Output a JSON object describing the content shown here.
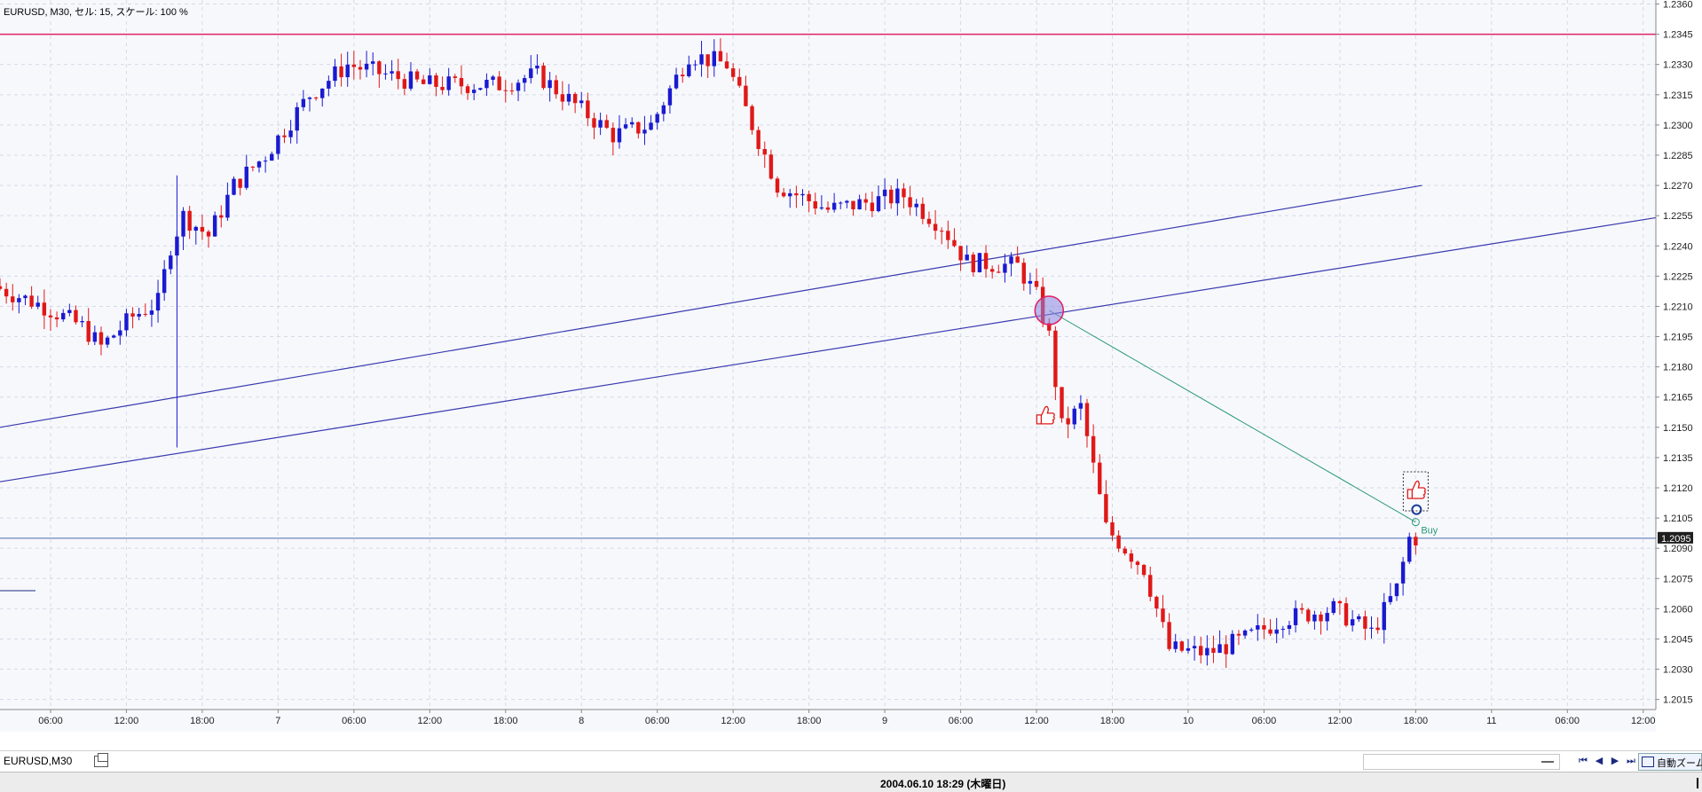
{
  "header": {
    "symbol_info": "EURUSD, M30, セル: 15, スケール: 100 %"
  },
  "price_axis": {
    "labels": [
      "1.2360",
      "1.2345",
      "1.2330",
      "1.2315",
      "1.2300",
      "1.2285",
      "1.2270",
      "1.2255",
      "1.2240",
      "1.2225",
      "1.2210",
      "1.2195",
      "1.2180",
      "1.2165",
      "1.2150",
      "1.2135",
      "1.2120",
      "1.2105",
      "1.2090",
      "1.2075",
      "1.2060",
      "1.2045",
      "1.2030",
      "1.2015"
    ],
    "current_price": "1.2095"
  },
  "time_axis": {
    "labels": [
      "06:00",
      "12:00",
      "18:00",
      "7",
      "06:00",
      "12:00",
      "18:00",
      "8",
      "06:00",
      "12:00",
      "18:00",
      "9",
      "06:00",
      "12:00",
      "18:00",
      "10",
      "06:00",
      "12:00",
      "18:00",
      "11",
      "06:00",
      "12:00"
    ]
  },
  "annotations": {
    "buy_label": "Buy"
  },
  "colors": {
    "bull": "#1a1ad0",
    "bear": "#e01818",
    "resistance": "#e0206a",
    "trendline": "#3a3aaf",
    "signal": "#2a9a7a"
  },
  "chart_data": {
    "type": "candlestick",
    "symbol": "EURUSD",
    "timeframe": "M30",
    "ylim": [
      1.201,
      1.2362
    ],
    "resistance_level": 1.2345,
    "current_price": 1.2095,
    "x_range": [
      "2004-06-06 02:00",
      "2004-06-11 13:00"
    ],
    "trendlines": [
      {
        "from": [
          "2004-06-06 02:00",
          1.215
        ],
        "to": [
          "2004-06-10 18:30",
          1.227
        ]
      },
      {
        "from": [
          "2004-06-06 02:00",
          1.2123
        ],
        "to": [
          "2004-06-11 14:00",
          1.2255
        ]
      }
    ],
    "signal_line": {
      "from": [
        "2004-06-09 13:00",
        1.2208
      ],
      "to": [
        "2004-06-10 18:00",
        1.2103
      ],
      "label": "Buy"
    },
    "anchor_points": [
      [
        "2004-06-06 02:00",
        1.222
      ],
      [
        "2004-06-06 06:00",
        1.221
      ],
      [
        "2004-06-06 09:00",
        1.22
      ],
      [
        "2004-06-06 10:30",
        1.219
      ],
      [
        "2004-06-06 13:00",
        1.2205
      ],
      [
        "2004-06-06 15:00",
        1.2212
      ],
      [
        "2004-06-06 16:00",
        1.224
      ],
      [
        "2004-06-06 17:00",
        1.2255
      ],
      [
        "2004-06-06 19:00",
        1.2245
      ],
      [
        "2004-06-06 21:00",
        1.227
      ],
      [
        "2004-06-06 23:30",
        1.2285
      ],
      [
        "2004-06-07 03:00",
        1.2315
      ],
      [
        "2004-06-07 06:00",
        1.233
      ],
      [
        "2004-06-07 12:00",
        1.232
      ],
      [
        "2004-06-07 18:00",
        1.232
      ],
      [
        "2004-06-07 21:00",
        1.2325
      ],
      [
        "2004-06-08 00:00",
        1.231
      ],
      [
        "2004-06-08 03:00",
        1.2295
      ],
      [
        "2004-06-08 06:00",
        1.23
      ],
      [
        "2004-06-08 09:00",
        1.2335
      ],
      [
        "2004-06-08 12:00",
        1.233
      ],
      [
        "2004-06-08 14:00",
        1.23
      ],
      [
        "2004-06-08 16:00",
        1.227
      ],
      [
        "2004-06-08 20:00",
        1.2258
      ],
      [
        "2004-06-09 02:00",
        1.2265
      ],
      [
        "2004-06-09 05:00",
        1.225
      ],
      [
        "2004-06-09 07:00",
        1.2232
      ],
      [
        "2004-06-09 11:00",
        1.223
      ],
      [
        "2004-06-09 12:30",
        1.2215
      ],
      [
        "2004-06-09 13:30",
        1.2195
      ],
      [
        "2004-06-09 14:30",
        1.215
      ],
      [
        "2004-06-09 16:00",
        1.216
      ],
      [
        "2004-06-09 18:00",
        1.21
      ],
      [
        "2004-06-09 21:00",
        1.208
      ],
      [
        "2004-06-09 23:00",
        1.204
      ],
      [
        "2004-06-10 02:00",
        1.2038
      ],
      [
        "2004-06-10 05:00",
        1.2045
      ],
      [
        "2004-06-10 08:00",
        1.2055
      ],
      [
        "2004-06-10 12:00",
        1.206
      ],
      [
        "2004-06-10 15:00",
        1.2048
      ],
      [
        "2004-06-10 17:00",
        1.207
      ],
      [
        "2004-06-10 18:00",
        1.2095
      ]
    ]
  },
  "tabs": {
    "symbol_tab": "EURUSD,M30"
  },
  "toolbar": {
    "nav_first": "⏮",
    "nav_prev": "◀",
    "nav_next": "▶",
    "nav_last": "⏭",
    "zoom_label": "自動ズーム"
  },
  "status": {
    "datetime": "2004.06.10 18:29 (木曜日)"
  }
}
